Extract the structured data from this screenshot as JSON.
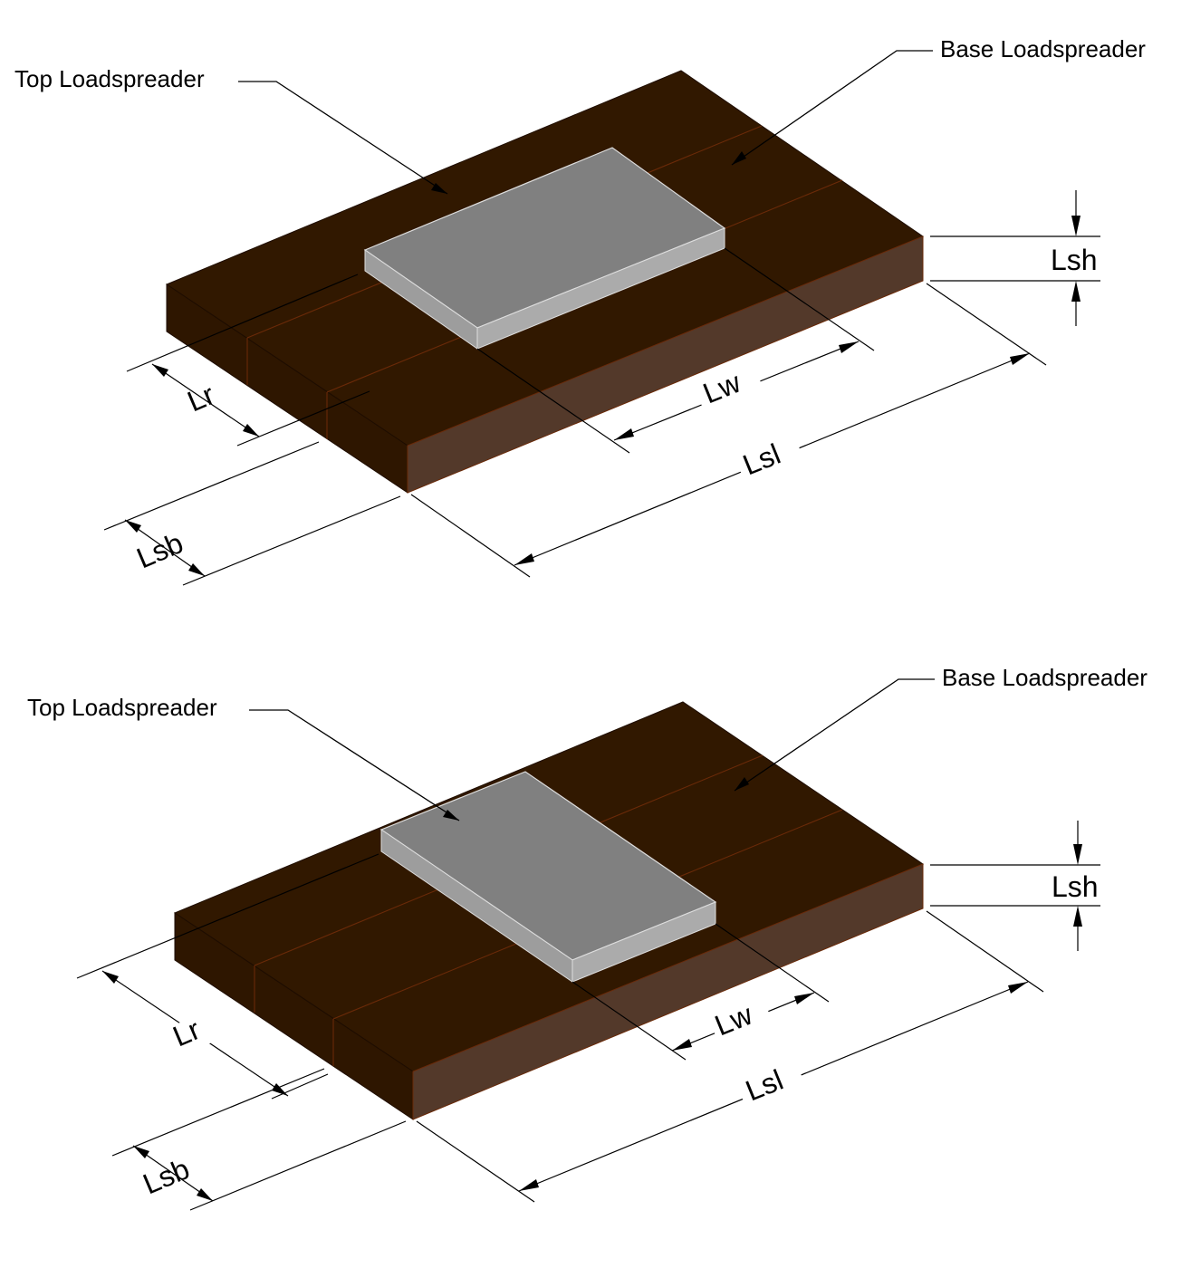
{
  "top_view": {
    "callouts": {
      "top_loadspreader": "Top Loadspreader",
      "base_loadspreader": "Base Loadspreader"
    },
    "dimensions": {
      "lsh": "Lsh",
      "lr": "Lr",
      "lw": "Lw",
      "lsl": "Lsl",
      "lsb": "Lsb"
    }
  },
  "bottom_view": {
    "callouts": {
      "top_loadspreader": "Top Loadspreader",
      "base_loadspreader": "Base Loadspreader"
    },
    "dimensions": {
      "lsh": "Lsh",
      "lr": "Lr",
      "lw": "Lw",
      "lsl": "Lsl",
      "lsb": "Lsb"
    }
  },
  "colors": {
    "base_top_face": "#311800",
    "base_front_face": "#53392a",
    "base_left_face": "#2e1600",
    "base_seams": "#6a2a08",
    "top_plate_face": "#808080",
    "top_plate_side": "#aaaaaa",
    "lines": "#000000"
  }
}
